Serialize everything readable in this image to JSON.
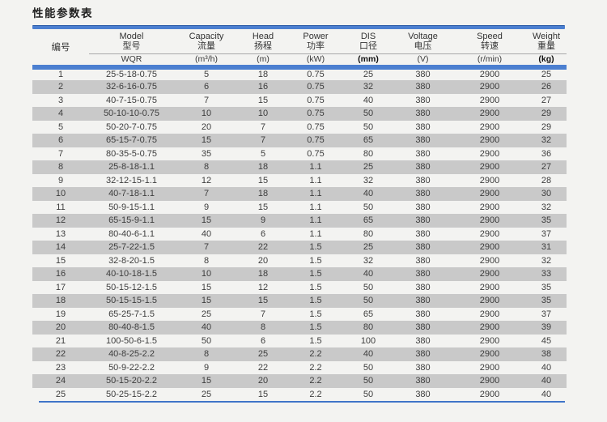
{
  "title": "性能参数表",
  "colors": {
    "accent_blue": "#4b7fd0",
    "stripe_gray": "#c9c9c9",
    "page_bg": "#f3f3f1",
    "bottom_line_blue": "#3f74c8"
  },
  "table": {
    "columns": [
      {
        "label_en": "",
        "label_zh": "编号",
        "unit": ""
      },
      {
        "label_en": "Model",
        "label_zh": "型号",
        "unit": "WQR"
      },
      {
        "label_en": "Capacity",
        "label_zh": "流量",
        "unit": "(m³/h)"
      },
      {
        "label_en": "Head",
        "label_zh": "扬程",
        "unit": "(m)"
      },
      {
        "label_en": "Power",
        "label_zh": "功率",
        "unit": "(kW)"
      },
      {
        "label_en": "DIS",
        "label_zh": "口径",
        "unit": "(mm)",
        "unit_bold": true
      },
      {
        "label_en": "Voltage",
        "label_zh": "电压",
        "unit": "(V)"
      },
      {
        "label_en": "Speed",
        "label_zh": "转速",
        "unit": "(r/min)"
      },
      {
        "label_en": "Weight",
        "label_zh": "重量",
        "unit": "(kg)",
        "unit_bold": true
      }
    ],
    "rows": [
      [
        "1",
        "25-5-18-0.75",
        "5",
        "18",
        "0.75",
        "25",
        "380",
        "2900",
        "25"
      ],
      [
        "2",
        "32-6-16-0.75",
        "6",
        "16",
        "0.75",
        "32",
        "380",
        "2900",
        "26"
      ],
      [
        "3",
        "40-7-15-0.75",
        "7",
        "15",
        "0.75",
        "40",
        "380",
        "2900",
        "27"
      ],
      [
        "4",
        "50-10-10-0.75",
        "10",
        "10",
        "0.75",
        "50",
        "380",
        "2900",
        "29"
      ],
      [
        "5",
        "50-20-7-0.75",
        "20",
        "7",
        "0.75",
        "50",
        "380",
        "2900",
        "29"
      ],
      [
        "6",
        "65-15-7-0.75",
        "15",
        "7",
        "0.75",
        "65",
        "380",
        "2900",
        "32"
      ],
      [
        "7",
        "80-35-5-0.75",
        "35",
        "5",
        "0.75",
        "80",
        "380",
        "2900",
        "36"
      ],
      [
        "8",
        "25-8-18-1.1",
        "8",
        "18",
        "1.1",
        "25",
        "380",
        "2900",
        "27"
      ],
      [
        "9",
        "32-12-15-1.1",
        "12",
        "15",
        "1.1",
        "32",
        "380",
        "2900",
        "28"
      ],
      [
        "10",
        "40-7-18-1.1",
        "7",
        "18",
        "1.1",
        "40",
        "380",
        "2900",
        "30"
      ],
      [
        "11",
        "50-9-15-1.1",
        "9",
        "15",
        "1.1",
        "50",
        "380",
        "2900",
        "32"
      ],
      [
        "12",
        "65-15-9-1.1",
        "15",
        "9",
        "1.1",
        "65",
        "380",
        "2900",
        "35"
      ],
      [
        "13",
        "80-40-6-1.1",
        "40",
        "6",
        "1.1",
        "80",
        "380",
        "2900",
        "37"
      ],
      [
        "14",
        "25-7-22-1.5",
        "7",
        "22",
        "1.5",
        "25",
        "380",
        "2900",
        "31"
      ],
      [
        "15",
        "32-8-20-1.5",
        "8",
        "20",
        "1.5",
        "32",
        "380",
        "2900",
        "32"
      ],
      [
        "16",
        "40-10-18-1.5",
        "10",
        "18",
        "1.5",
        "40",
        "380",
        "2900",
        "33"
      ],
      [
        "17",
        "50-15-12-1.5",
        "15",
        "12",
        "1.5",
        "50",
        "380",
        "2900",
        "35"
      ],
      [
        "18",
        "50-15-15-1.5",
        "15",
        "15",
        "1.5",
        "50",
        "380",
        "2900",
        "35"
      ],
      [
        "19",
        "65-25-7-1.5",
        "25",
        "7",
        "1.5",
        "65",
        "380",
        "2900",
        "37"
      ],
      [
        "20",
        "80-40-8-1.5",
        "40",
        "8",
        "1.5",
        "80",
        "380",
        "2900",
        "39"
      ],
      [
        "21",
        "100-50-6-1.5",
        "50",
        "6",
        "1.5",
        "100",
        "380",
        "2900",
        "45"
      ],
      [
        "22",
        "40-8-25-2.2",
        "8",
        "25",
        "2.2",
        "40",
        "380",
        "2900",
        "38"
      ],
      [
        "23",
        "50-9-22-2.2",
        "9",
        "22",
        "2.2",
        "50",
        "380",
        "2900",
        "40"
      ],
      [
        "24",
        "50-15-20-2.2",
        "15",
        "20",
        "2.2",
        "50",
        "380",
        "2900",
        "40"
      ],
      [
        "25",
        "50-25-15-2.2",
        "25",
        "15",
        "2.2",
        "50",
        "380",
        "2900",
        "40"
      ]
    ]
  }
}
